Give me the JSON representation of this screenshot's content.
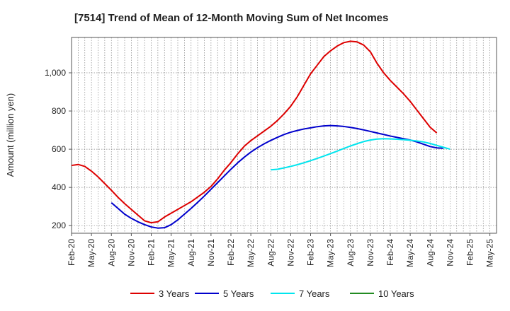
{
  "chart_data": {
    "type": "line",
    "title": "[7514]  Trend of Mean of 12-Month Moving Sum of Net Incomes",
    "xlabel": "",
    "ylabel": "Amount (million yen)",
    "ylim": [
      160,
      1185
    ],
    "yticks": [
      200,
      400,
      600,
      800,
      "1,000"
    ],
    "ytick_values": [
      200,
      400,
      600,
      800,
      1000
    ],
    "x_start": "Feb-20",
    "x_months": 64,
    "x_tick_labels": [
      "Feb-20",
      "May-20",
      "Aug-20",
      "Nov-20",
      "Feb-21",
      "May-21",
      "Aug-21",
      "Nov-21",
      "Feb-22",
      "May-22",
      "Aug-22",
      "Nov-22",
      "Feb-23",
      "May-23",
      "Aug-23",
      "Nov-23",
      "Feb-24",
      "May-24",
      "Aug-24",
      "Nov-24",
      "Feb-25",
      "May-25"
    ],
    "grid": true,
    "legend_position": "bottom",
    "series": [
      {
        "name": "3 Years",
        "color": "#dd0000",
        "start_index": 0,
        "values": [
          515,
          520,
          510,
          485,
          455,
          420,
          385,
          348,
          315,
          285,
          255,
          225,
          215,
          220,
          245,
          265,
          285,
          305,
          325,
          350,
          375,
          405,
          445,
          490,
          530,
          575,
          615,
          645,
          670,
          695,
          720,
          750,
          785,
          825,
          875,
          935,
          995,
          1040,
          1085,
          1115,
          1140,
          1158,
          1165,
          1162,
          1145,
          1110,
          1050,
          1000,
          960,
          925,
          890,
          850,
          805,
          760,
          715,
          685
        ]
      },
      {
        "name": "5 Years",
        "color": "#0000cc",
        "start_index": 6,
        "values": [
          320,
          290,
          260,
          238,
          220,
          205,
          193,
          187,
          189,
          205,
          230,
          260,
          290,
          322,
          355,
          390,
          425,
          460,
          495,
          528,
          558,
          585,
          608,
          628,
          646,
          662,
          677,
          689,
          698,
          706,
          712,
          718,
          722,
          724,
          722,
          719,
          714,
          708,
          701,
          693,
          685,
          677,
          669,
          662,
          655,
          648,
          638,
          626,
          614,
          607,
          605
        ]
      },
      {
        "name": "7 Years",
        "color": "#00e5ee",
        "start_index": 30,
        "values": [
          492,
          495,
          502,
          510,
          519,
          529,
          540,
          552,
          564,
          577,
          590,
          604,
          617,
          629,
          640,
          648,
          653,
          655,
          654,
          652,
          650,
          647,
          643,
          638,
          630,
          620,
          610,
          600
        ]
      },
      {
        "name": "10 Years",
        "color": "#228b22",
        "start_index": 0,
        "values": []
      }
    ]
  }
}
